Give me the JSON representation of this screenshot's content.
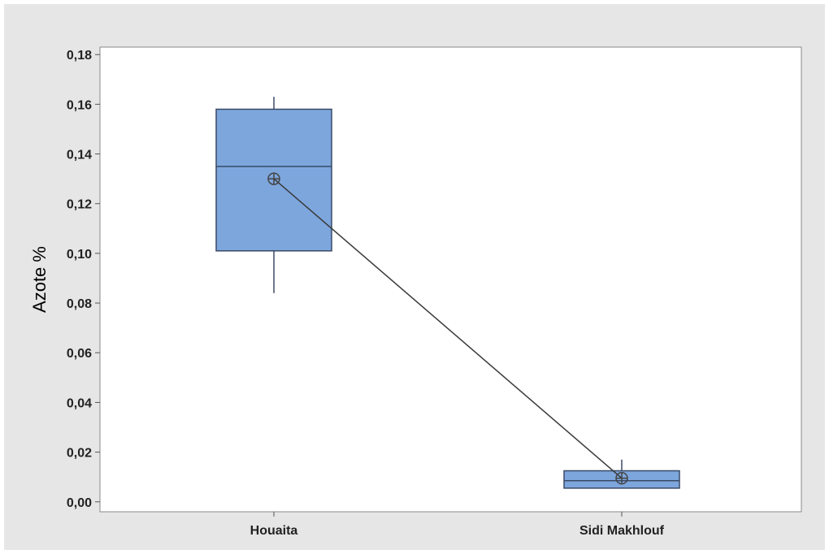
{
  "chart_data": {
    "type": "boxplot",
    "title": "",
    "xlabel": "",
    "ylabel": "Azote %",
    "ylim": [
      -0.004,
      0.183
    ],
    "yticks": [
      "0,00",
      "0,02",
      "0,04",
      "0,06",
      "0,08",
      "0,10",
      "0,12",
      "0,14",
      "0,16",
      "0,18"
    ],
    "ytick_values": [
      0,
      0.02,
      0.04,
      0.06,
      0.08,
      0.1,
      0.12,
      0.14,
      0.16,
      0.18
    ],
    "categories": [
      "Houaita",
      "Sidi Makhlouf"
    ],
    "boxes": [
      {
        "category": "Houaita",
        "whisker_low": 0.084,
        "q1": 0.101,
        "median": 0.135,
        "q3": 0.158,
        "whisker_high": 0.163,
        "mean": 0.13
      },
      {
        "category": "Sidi Makhlouf",
        "whisker_low": 0.0055,
        "q1": 0.0055,
        "median": 0.0085,
        "q3": 0.0125,
        "whisker_high": 0.017,
        "mean": 0.0095
      }
    ],
    "mean_connect_line": true,
    "grid": false,
    "legend": "none",
    "colors": {
      "box_fill": "#7da6dd",
      "box_stroke": "#3a4a66",
      "line": "#3a3a3a",
      "plot_background": "#ffffff",
      "frame_background": "#e6e6e6"
    }
  }
}
